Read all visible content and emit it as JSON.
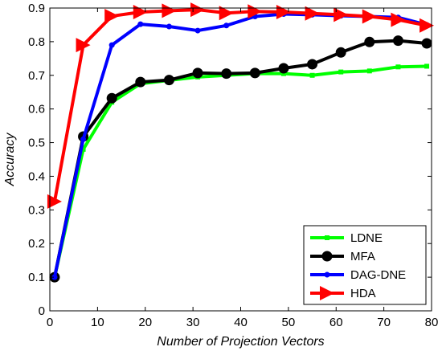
{
  "chart_data": {
    "type": "line",
    "title": "",
    "xlabel": "Number of Projection Vectors",
    "ylabel": "Accuracy",
    "xlim": [
      0,
      80
    ],
    "ylim": [
      0,
      0.9
    ],
    "xticks": [
      0,
      10,
      20,
      30,
      40,
      50,
      60,
      70,
      80
    ],
    "yticks": [
      0,
      0.1,
      0.2,
      0.3,
      0.4,
      0.5,
      0.6,
      0.7,
      0.8,
      0.9
    ],
    "xtick_labels": [
      "0",
      "10",
      "20",
      "30",
      "40",
      "50",
      "60",
      "70",
      "80"
    ],
    "ytick_labels": [
      "0",
      "0.1",
      "0.2",
      "0.3",
      "0.4",
      "0.5",
      "0.6",
      "0.7",
      "0.8",
      "0.9"
    ],
    "grid": false,
    "legend_position": "bottom-right",
    "x": [
      1,
      7,
      13,
      19,
      25,
      31,
      37,
      43,
      49,
      55,
      61,
      67,
      73,
      79
    ],
    "series": [
      {
        "name": "LDNE",
        "color": "#00ff00",
        "marker": "square",
        "values": [
          0.1,
          0.48,
          0.62,
          0.675,
          0.685,
          0.695,
          0.7,
          0.705,
          0.705,
          0.7,
          0.71,
          0.713,
          0.725,
          0.727
        ]
      },
      {
        "name": "MFA",
        "color": "#000000",
        "marker": "circle",
        "values": [
          0.1,
          0.518,
          0.632,
          0.68,
          0.686,
          0.707,
          0.705,
          0.707,
          0.721,
          0.733,
          0.768,
          0.799,
          0.803,
          0.795
        ]
      },
      {
        "name": "DAG-DNE",
        "color": "#0000ff",
        "marker": "dot",
        "values": [
          0.1,
          0.51,
          0.79,
          0.852,
          0.845,
          0.833,
          0.848,
          0.875,
          0.882,
          0.88,
          0.877,
          0.875,
          0.872,
          0.85
        ]
      },
      {
        "name": "HDA",
        "color": "#ff0000",
        "marker": "triangle-right",
        "values": [
          0.325,
          0.79,
          0.876,
          0.888,
          0.892,
          0.895,
          0.885,
          0.89,
          0.888,
          0.884,
          0.88,
          0.875,
          0.865,
          0.848
        ]
      }
    ]
  }
}
